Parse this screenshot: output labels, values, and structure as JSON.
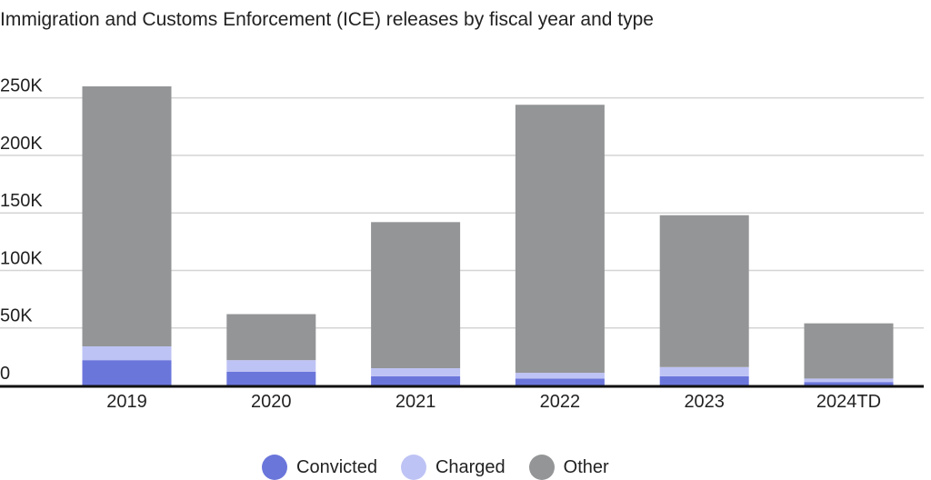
{
  "chart_data": {
    "type": "bar",
    "stacked": true,
    "title": "Immigration and Customs Enforcement (ICE) releases by fiscal year and type",
    "xlabel": "",
    "ylabel": "",
    "categories": [
      "2019",
      "2020",
      "2021",
      "2022",
      "2023",
      "2024TD"
    ],
    "ylim": [
      0,
      260000
    ],
    "yticks": [
      0,
      50000,
      100000,
      150000,
      200000,
      250000
    ],
    "ytick_labels": [
      "0",
      "50K",
      "100K",
      "150K",
      "200K",
      "250K"
    ],
    "grid": true,
    "legend_position": "bottom",
    "series": [
      {
        "name": "Convicted",
        "color": "#6b76db",
        "values": [
          22000,
          12000,
          8000,
          6000,
          8000,
          3000
        ]
      },
      {
        "name": "Charged",
        "color": "#bec3f5",
        "values": [
          12000,
          10000,
          7000,
          5000,
          8000,
          3000
        ]
      },
      {
        "name": "Other",
        "color": "#939596",
        "values": [
          226000,
          40000,
          127000,
          233000,
          132000,
          48000
        ]
      }
    ]
  }
}
